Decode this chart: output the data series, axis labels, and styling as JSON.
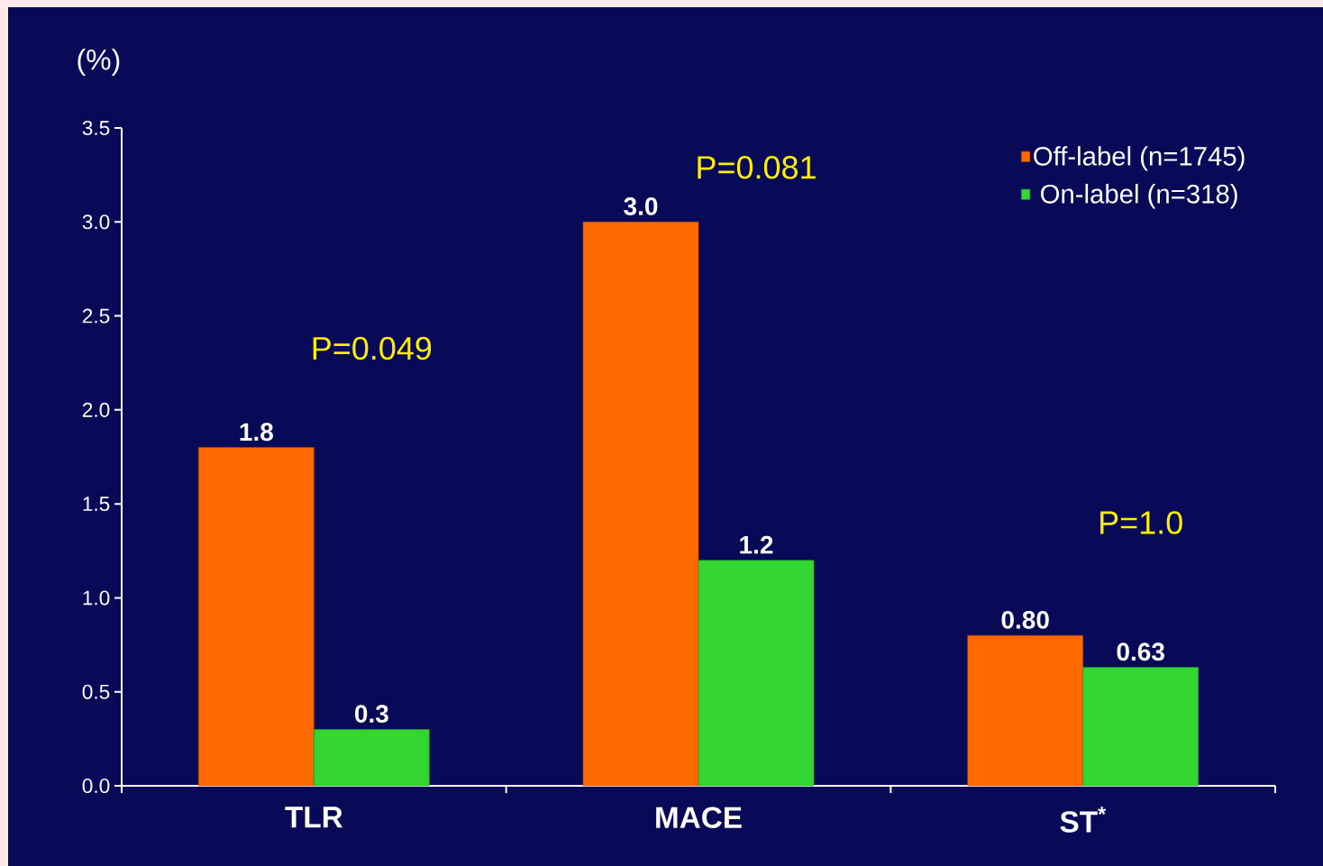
{
  "chart_data": {
    "type": "bar",
    "ylabel": "(%)",
    "categories": [
      "TLR",
      "MACE",
      "ST$^{*}$"
    ],
    "series": [
      {
        "name": "Off-label (n=1745)",
        "color": "#ff6a00",
        "values": [
          1.8,
          3.0,
          0.8
        ],
        "value_labels": [
          "1.8",
          "3.0",
          "0.80"
        ]
      },
      {
        "name": "On-label (n=318)",
        "color": "#33d633",
        "values": [
          0.3,
          1.2,
          0.63
        ],
        "value_labels": [
          "0.3",
          "1.2",
          "0.63"
        ]
      }
    ],
    "ylim": [
      0,
      3.5
    ],
    "yticks": [
      {
        "value": 0,
        "label": "0.0"
      },
      {
        "value": 0.5,
        "label": "0.5"
      },
      {
        "value": 1,
        "label": "1.0"
      },
      {
        "value": 1.5,
        "label": "1.5"
      },
      {
        "value": 2,
        "label": "2.0"
      },
      {
        "value": 2.5,
        "label": "2.5"
      },
      {
        "value": 3,
        "label": "3.0"
      },
      {
        "value": 3.5,
        "label": "3.5"
      }
    ],
    "annotations": [
      "P=0.049",
      "P=0.081",
      "P=1.0"
    ],
    "legend": "top right",
    "grid": false
  }
}
